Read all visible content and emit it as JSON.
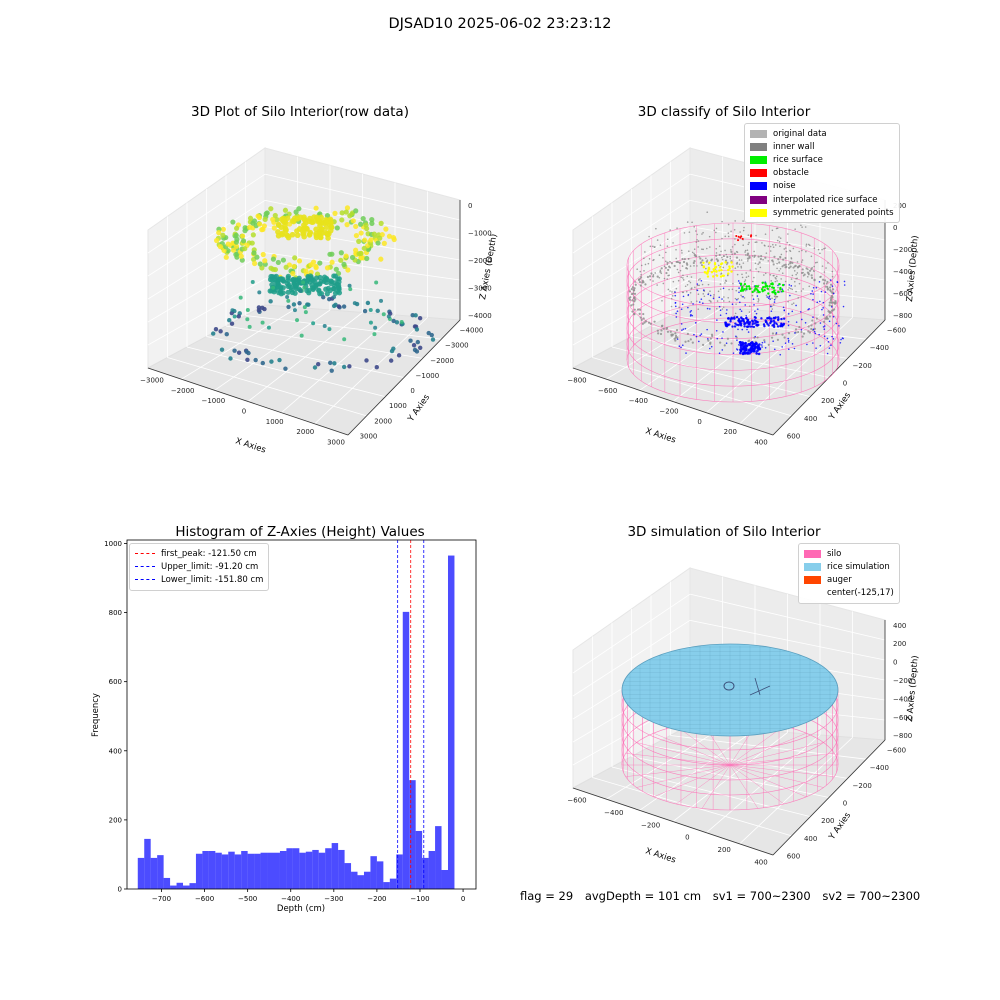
{
  "figure": {
    "suptitle": "DJSAD10 2025-06-02 23:23:12"
  },
  "chart_data": [
    {
      "type": "scatter",
      "panel": "raw",
      "title": "3D Plot of Silo Interior(row data)",
      "projection": "3d",
      "xlabel": "X Axies",
      "ylabel": "Y Axies",
      "zlabel": "Z Axies (Depth)",
      "xticks": [
        "−3000",
        "−2000",
        "−1000",
        "0",
        "1000",
        "2000",
        "3000"
      ],
      "yticks": [
        "−4000",
        "−3000",
        "−2000",
        "−1000",
        "0",
        "1000",
        "2000",
        "3000"
      ],
      "zticks": [
        "0",
        "−1000",
        "−2000",
        "−3000",
        "−4000"
      ],
      "xlim": [
        -3000,
        3000
      ],
      "ylim": [
        -4000,
        3000
      ],
      "zlim": [
        -4000,
        0
      ],
      "colormap": "viridis",
      "grid": true
    },
    {
      "type": "scatter",
      "panel": "classify",
      "title": "3D classify of Silo Interior",
      "projection": "3d",
      "xlabel": "X Axies",
      "ylabel": "Y Axies",
      "zlabel": "Z Axies (Depth)",
      "xticks": [
        "−800",
        "−600",
        "−400",
        "−200",
        "0",
        "200",
        "400"
      ],
      "yticks": [
        "−600",
        "−400",
        "−200",
        "0",
        "200",
        "400",
        "600"
      ],
      "zticks": [
        "200",
        "0",
        "−200",
        "−400",
        "−600",
        "−800"
      ],
      "legend_position": "upper-right",
      "legend": [
        {
          "label": "original data",
          "color": "#b3b3b3"
        },
        {
          "label": "inner wall",
          "color": "#808080"
        },
        {
          "label": "rice surface",
          "color": "#00ee00"
        },
        {
          "label": "obstacle",
          "color": "#ff0000"
        },
        {
          "label": "noise",
          "color": "#0000ff"
        },
        {
          "label": "interpolated rice surface",
          "color": "#800080"
        },
        {
          "label": "symmetric generated points",
          "color": "#ffff00"
        }
      ],
      "grid": true
    },
    {
      "type": "bar",
      "panel": "histogram",
      "title": "Histogram of Z-Axies (Height) Values",
      "xlabel": "Depth (cm)",
      "ylabel": "Frequency",
      "xlim": [
        -780,
        30
      ],
      "ylim": [
        0,
        1010
      ],
      "xticks": [
        -700,
        -600,
        -500,
        -400,
        -300,
        -200,
        -100,
        0
      ],
      "yticks": [
        0,
        200,
        400,
        600,
        800,
        1000
      ],
      "bar_color": "#0000ff",
      "bin_edges_start": -755,
      "bin_width": 15,
      "values": [
        90,
        145,
        90,
        98,
        32,
        10,
        18,
        10,
        17,
        102,
        110,
        110,
        105,
        100,
        108,
        100,
        110,
        102,
        102,
        105,
        105,
        105,
        110,
        118,
        118,
        105,
        108,
        113,
        105,
        118,
        133,
        113,
        75,
        50,
        40,
        50,
        95,
        80,
        20,
        30,
        100,
        802,
        315,
        168,
        90,
        110,
        182,
        55,
        965
      ],
      "reference_lines": [
        {
          "label": "first_peak: -121.50 cm",
          "x": -121.5,
          "color": "#ff0000"
        },
        {
          "label": "Upper_limit: -91.20 cm",
          "x": -91.2,
          "color": "#0000ff"
        },
        {
          "label": "Lower_limit: -151.80 cm",
          "x": -151.8,
          "color": "#0000ff"
        }
      ],
      "legend_position": "upper-left",
      "grid": false
    },
    {
      "type": "surface",
      "panel": "simulation",
      "title": "3D simulation of Silo Interior",
      "projection": "3d",
      "xlabel": "X Axies",
      "ylabel": "Y Axies",
      "zlabel": "Z Axies (Depth)",
      "xticks": [
        "−600",
        "−400",
        "−200",
        "0",
        "200",
        "400"
      ],
      "yticks": [
        "−600",
        "−400",
        "−200",
        "0",
        "200",
        "400",
        "600"
      ],
      "zticks": [
        "400",
        "200",
        "0",
        "−200",
        "−400",
        "−600",
        "−800"
      ],
      "legend_position": "upper-right",
      "legend": [
        {
          "label": "silo",
          "color": "#ff69b4"
        },
        {
          "label": "rice simulation",
          "color": "#87ceeb"
        },
        {
          "label": "auger",
          "color": "#ff4500"
        },
        {
          "label": "center(-125,17)",
          "color": ""
        }
      ],
      "grid": true
    }
  ],
  "status": {
    "flag": "flag = 29",
    "avg_depth": "avgDepth = 101 cm",
    "sv1": "sv1 = 700~2300",
    "sv2": "sv2 = 700~2300"
  }
}
